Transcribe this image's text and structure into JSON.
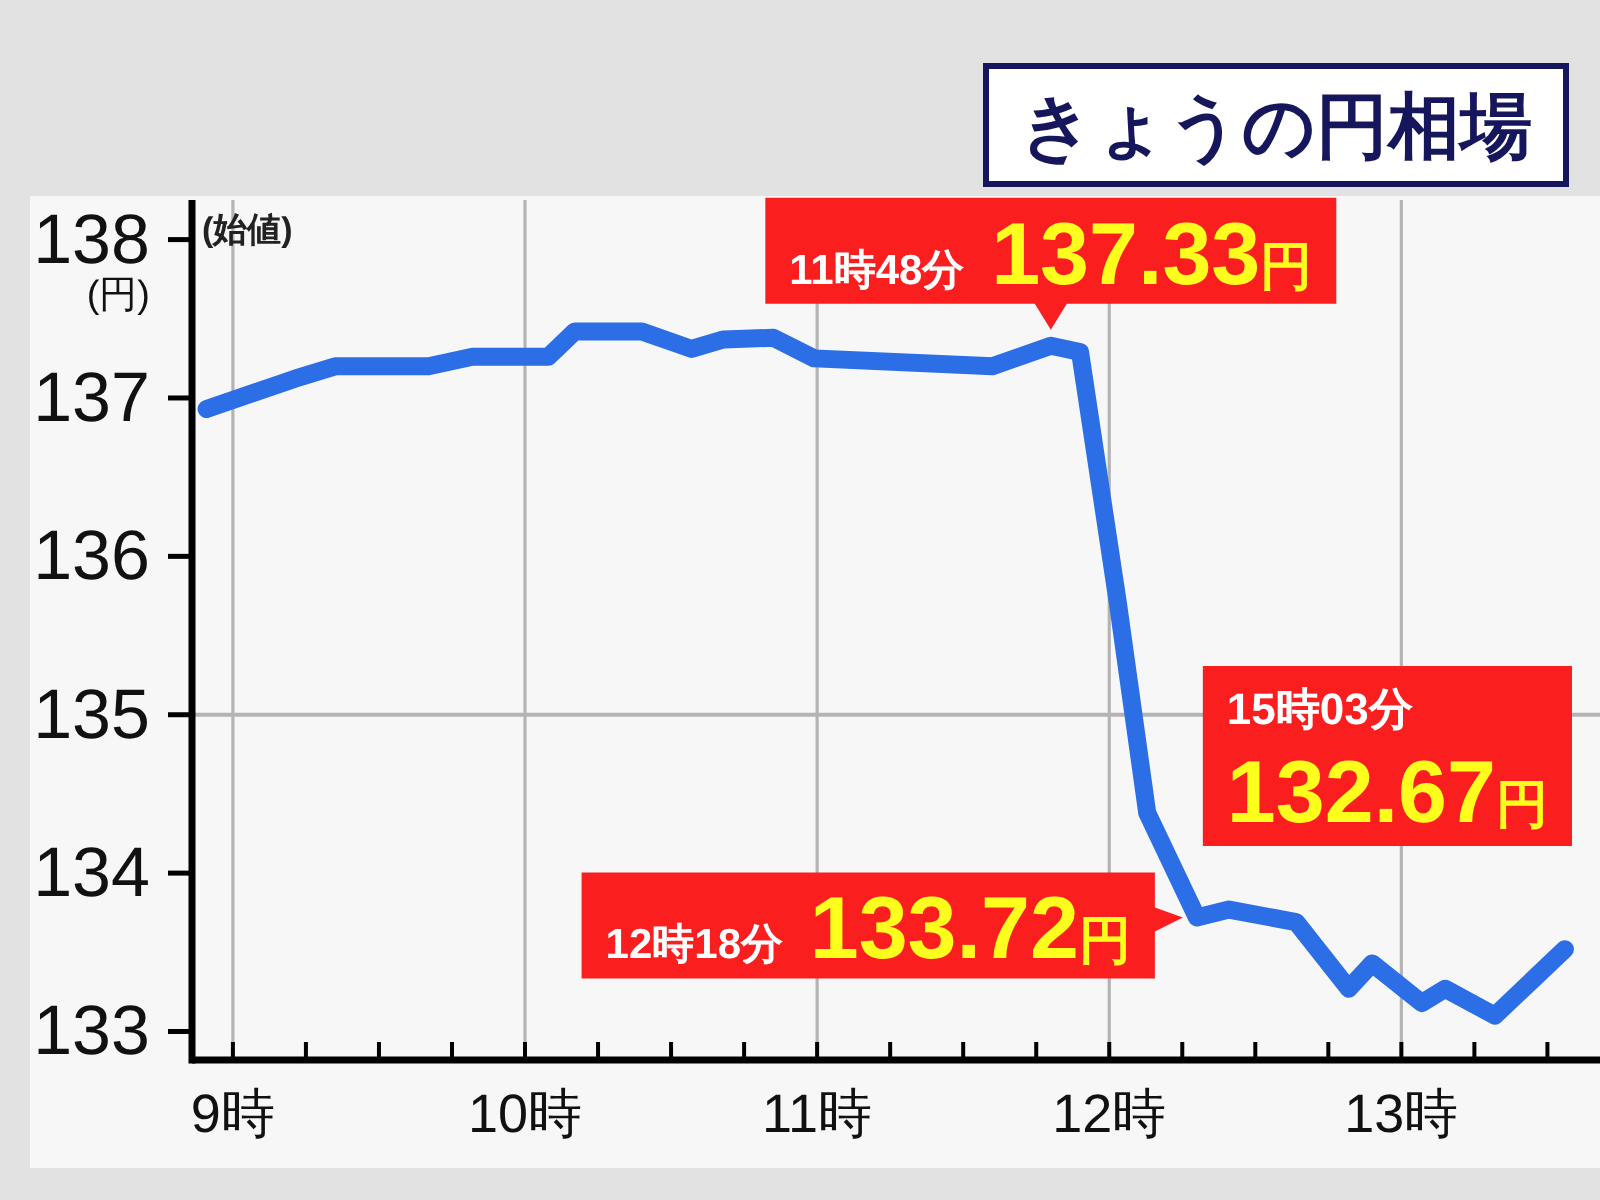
{
  "chart_data": {
    "type": "line",
    "title": "きょうの円相場",
    "ylabel": "(円)",
    "x": [
      8.91,
      9.21,
      9.35,
      9.67,
      9.82,
      10.08,
      10.17,
      10.4,
      10.57,
      10.68,
      10.85,
      10.99,
      11.6,
      11.8,
      11.9,
      12.03,
      12.13,
      12.3,
      12.41,
      12.64,
      12.82,
      12.9,
      13.07,
      13.15,
      13.32,
      13.56
    ],
    "values": [
      136.93,
      137.12,
      137.2,
      137.2,
      137.26,
      137.26,
      137.42,
      137.42,
      137.31,
      137.37,
      137.38,
      137.25,
      137.2,
      137.33,
      137.29,
      135.7,
      134.38,
      133.72,
      133.77,
      133.69,
      133.27,
      133.43,
      133.18,
      133.27,
      133.1,
      133.52
    ],
    "color": "#2b6ee6",
    "xlim": [
      8.86,
      13.68
    ],
    "ylim": [
      132.82,
      138.25
    ],
    "xticks": [
      {
        "value": 9,
        "label": "9時"
      },
      {
        "value": 9.25,
        "label": null
      },
      {
        "value": 9.5,
        "label": null
      },
      {
        "value": 9.75,
        "label": null
      },
      {
        "value": 10,
        "label": "10時"
      },
      {
        "value": 10.25,
        "label": null
      },
      {
        "value": 10.5,
        "label": null
      },
      {
        "value": 10.75,
        "label": null
      },
      {
        "value": 11,
        "label": "11時"
      },
      {
        "value": 11.25,
        "label": null
      },
      {
        "value": 11.5,
        "label": null
      },
      {
        "value": 11.75,
        "label": null
      },
      {
        "value": 12,
        "label": "12時"
      },
      {
        "value": 12.25,
        "label": null
      },
      {
        "value": 12.5,
        "label": null
      },
      {
        "value": 12.75,
        "label": null
      },
      {
        "value": 13,
        "label": "13時"
      },
      {
        "value": 13.25,
        "label": null
      },
      {
        "value": 13.5,
        "label": null
      }
    ],
    "yticks": [
      133,
      134,
      135,
      136,
      137,
      138
    ],
    "grid": "x",
    "ref_lines": [
      {
        "axis": "y",
        "value": 135,
        "color": "#b4b4b4"
      }
    ],
    "annotations": [
      {
        "text": "11時48分 137.33円",
        "x": 11.8,
        "y": 137.33
      },
      {
        "text": "12時18分 133.72円",
        "x": 12.3,
        "y": 133.72
      },
      "15時03分 132.67円",
      "(始値)"
    ]
  }
}
